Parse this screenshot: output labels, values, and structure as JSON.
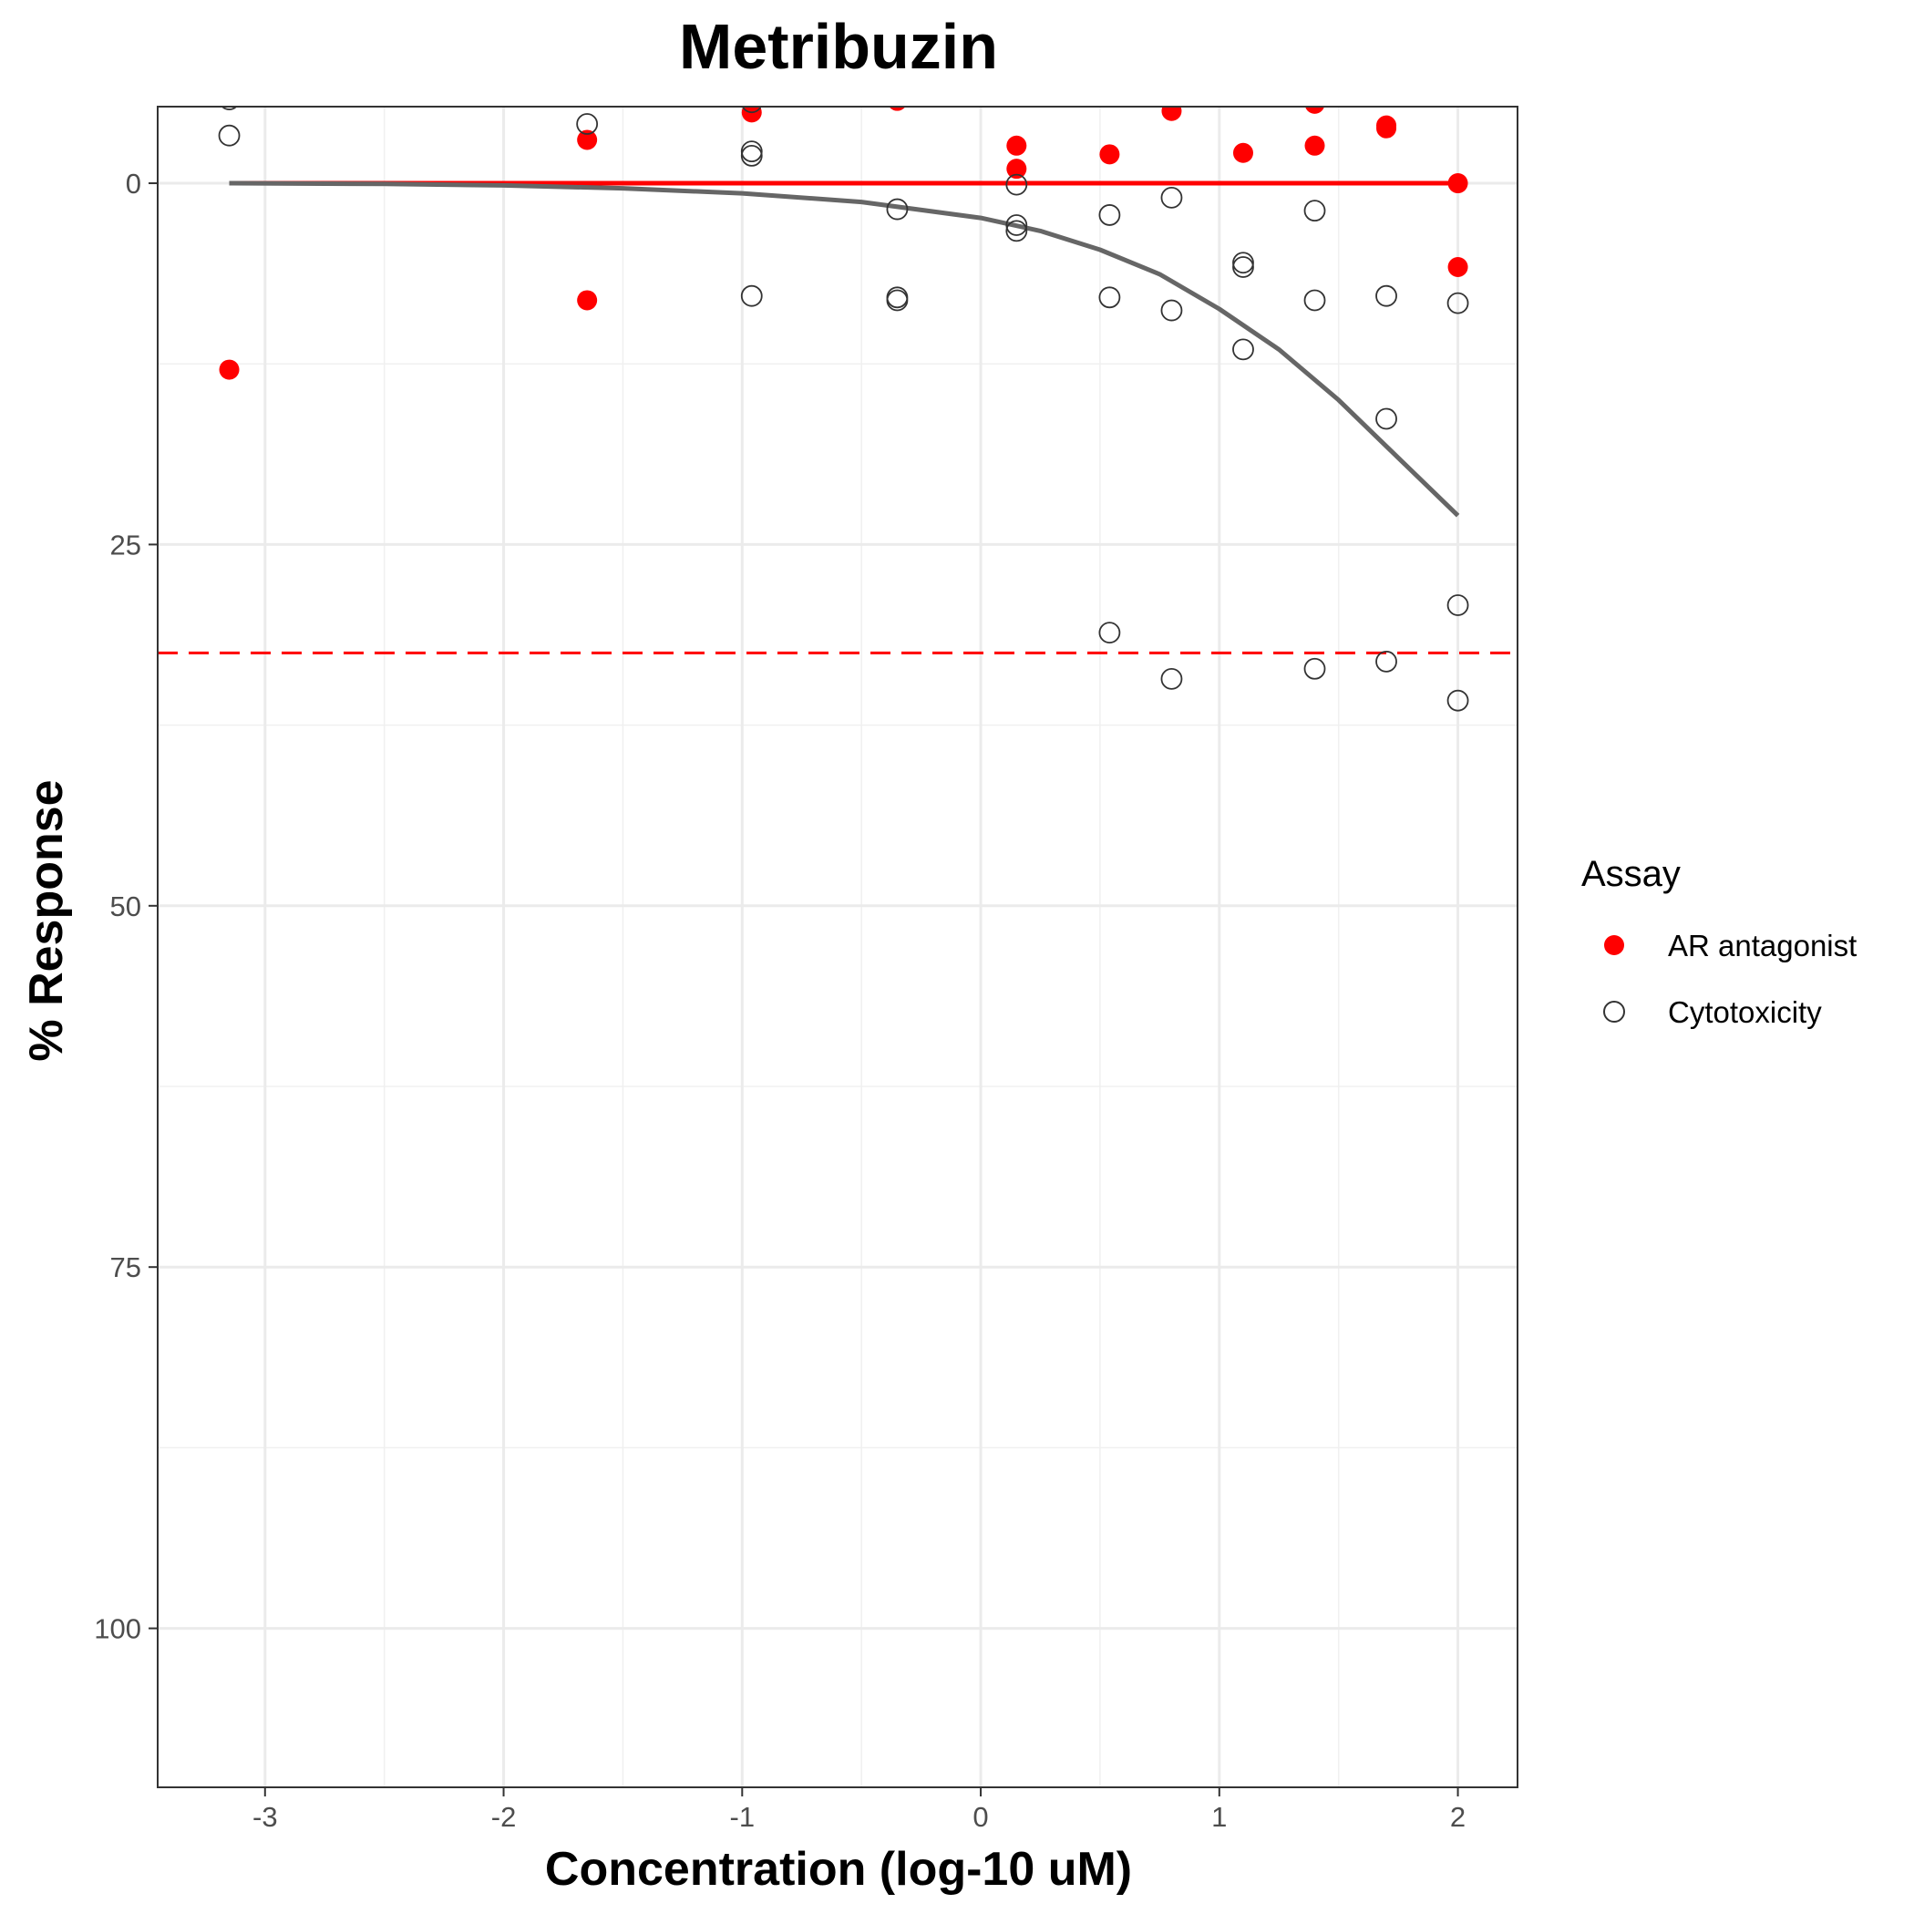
{
  "chart_data": {
    "type": "scatter",
    "title": "Metribuzin",
    "xlabel": "Concentration (log-10 uM)",
    "ylabel": "% Response",
    "xlim": [
      -3.45,
      2.25
    ],
    "ylim": [
      111,
      -5.3
    ],
    "y_reversed": true,
    "x_ticks": [
      -3,
      -2,
      -1,
      0,
      1,
      2
    ],
    "y_ticks": [
      0,
      25,
      50,
      75,
      100
    ],
    "x_tick_labels": [
      "-3",
      "-2",
      "-1",
      "0",
      "1",
      "2"
    ],
    "y_tick_labels": [
      "0",
      "25",
      "50",
      "75",
      "100"
    ],
    "grid": true,
    "legend": {
      "title": "Assay",
      "position": "right",
      "items": [
        {
          "label": "AR antagonist",
          "marker": "filled-circle",
          "color": "#ff0000"
        },
        {
          "label": "Cytotoxicity",
          "marker": "open-circle",
          "color": "#333333"
        }
      ]
    },
    "series": [
      {
        "name": "AR antagonist",
        "marker": "filled-circle",
        "color": "#ff0000",
        "points": [
          [
            -3.15,
            12.9
          ],
          [
            -1.65,
            -3.0
          ],
          [
            -1.65,
            8.1
          ],
          [
            -0.96,
            -4.9
          ],
          [
            -0.35,
            -5.7
          ],
          [
            0.15,
            -2.6
          ],
          [
            0.15,
            -1.0
          ],
          [
            0.54,
            -2.0
          ],
          [
            0.8,
            -5.0
          ],
          [
            1.1,
            -2.1
          ],
          [
            1.4,
            -5.5
          ],
          [
            1.4,
            -2.6
          ],
          [
            1.7,
            -4.0
          ],
          [
            1.7,
            -3.8
          ],
          [
            2.0,
            0.0
          ],
          [
            2.0,
            5.8
          ]
        ],
        "fit": {
          "type": "constant",
          "y": 0.0,
          "x_range": [
            -3.15,
            2.0
          ]
        }
      },
      {
        "name": "Cytotoxicity",
        "marker": "open-circle",
        "color": "#333333",
        "points": [
          [
            -3.15,
            -5.8
          ],
          [
            -3.15,
            -3.3
          ],
          [
            -1.65,
            -4.1
          ],
          [
            -0.96,
            -5.6
          ],
          [
            -0.96,
            -2.2
          ],
          [
            -0.96,
            -1.9
          ],
          [
            -0.96,
            7.8
          ],
          [
            -0.35,
            1.8
          ],
          [
            -0.35,
            7.9
          ],
          [
            -0.35,
            8.1
          ],
          [
            0.15,
            0.1
          ],
          [
            0.15,
            2.9
          ],
          [
            0.15,
            3.3
          ],
          [
            0.54,
            2.2
          ],
          [
            0.54,
            7.9
          ],
          [
            0.54,
            31.1
          ],
          [
            0.8,
            1.0
          ],
          [
            0.8,
            8.8
          ],
          [
            0.8,
            34.3
          ],
          [
            1.1,
            5.5
          ],
          [
            1.1,
            5.8
          ],
          [
            1.1,
            11.5
          ],
          [
            1.4,
            1.9
          ],
          [
            1.4,
            8.1
          ],
          [
            1.4,
            33.6
          ],
          [
            1.7,
            7.8
          ],
          [
            1.7,
            16.3
          ],
          [
            1.7,
            33.1
          ],
          [
            2.0,
            8.3
          ],
          [
            2.0,
            29.2
          ],
          [
            2.0,
            35.8
          ]
        ],
        "fit": {
          "type": "curve",
          "points": [
            [
              -3.15,
              0.0
            ],
            [
              -2.5,
              0.05
            ],
            [
              -2.0,
              0.15
            ],
            [
              -1.5,
              0.35
            ],
            [
              -1.0,
              0.7
            ],
            [
              -0.5,
              1.3
            ],
            [
              0.0,
              2.4
            ],
            [
              0.25,
              3.3
            ],
            [
              0.5,
              4.6
            ],
            [
              0.75,
              6.3
            ],
            [
              1.0,
              8.7
            ],
            [
              1.25,
              11.5
            ],
            [
              1.5,
              15.0
            ],
            [
              1.75,
              19.0
            ],
            [
              2.0,
              23.0
            ]
          ]
        }
      }
    ],
    "reference_lines": [
      {
        "type": "horizontal",
        "y": 32.5,
        "style": "dashed",
        "color": "#ff0000"
      }
    ]
  }
}
